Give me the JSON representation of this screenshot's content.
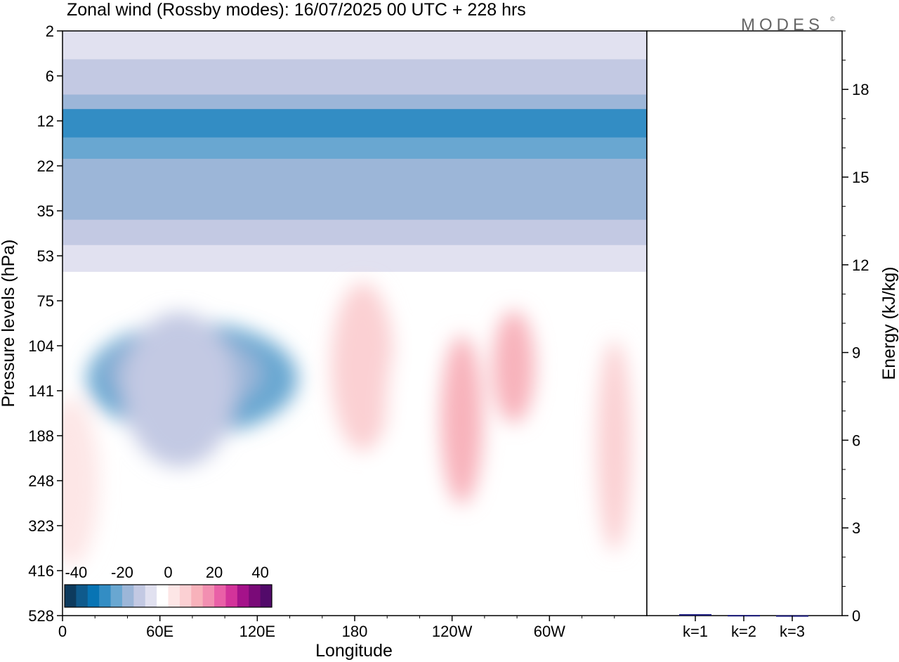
{
  "header": {
    "title": "Zonal wind (Rossby modes):  16/07/2025  00 UTC  + 228 hrs",
    "logo_text": "MODES",
    "logo_mark": "©"
  },
  "chart_data": [
    {
      "type": "heatmap",
      "title": "Zonal wind (Rossby modes):  16/07/2025  00 UTC  + 228 hrs",
      "xlabel": "Longitude",
      "ylabel": "Pressure levels (hPa)",
      "x_ticks": [
        "0",
        "60E",
        "120E",
        "180",
        "120W",
        "60W"
      ],
      "y_ticks": [
        "2",
        "6",
        "12",
        "22",
        "35",
        "53",
        "75",
        "104",
        "141",
        "188",
        "248",
        "323",
        "416",
        "528"
      ],
      "y_scale": "log",
      "colorbar": {
        "tick_labels": [
          "-40",
          "-20",
          "0",
          "20",
          "40"
        ],
        "colors": [
          "#0d3b5e",
          "#0f5a8c",
          "#0874b4",
          "#338dc4",
          "#69a7d1",
          "#9cb6d8",
          "#c3c9e3",
          "#e1e1f0",
          "#ffffff",
          "#fde6e6",
          "#fbd0d3",
          "#f8b2bb",
          "#f28fb1",
          "#e960a7",
          "#d3339a",
          "#a5128a",
          "#7a0a78",
          "#520a6a"
        ]
      },
      "bands": [
        {
          "p_top": 2,
          "p_bottom": 4,
          "value": -7
        },
        {
          "p_top": 4,
          "p_bottom": 6,
          "value": -11
        },
        {
          "p_top": 6,
          "p_bottom": 8,
          "value": -15
        },
        {
          "p_top": 8,
          "p_bottom": 10,
          "value": -20
        },
        {
          "p_top": 10,
          "p_bottom": 12,
          "value": -26
        },
        {
          "p_top": 12,
          "p_bottom": 15,
          "value": -29
        },
        {
          "p_top": 15,
          "p_bottom": 20,
          "value": -25
        },
        {
          "p_top": 20,
          "p_bottom": 30,
          "value": -20
        },
        {
          "p_top": 30,
          "p_bottom": 38,
          "value": -16
        },
        {
          "p_top": 38,
          "p_bottom": 48,
          "value": -11
        },
        {
          "p_top": 48,
          "p_bottom": 60,
          "value": -7
        },
        {
          "p_top": 60,
          "p_bottom": 528,
          "value": -2
        }
      ],
      "blobs": [
        {
          "lon": 80,
          "p": 130,
          "value": -21
        },
        {
          "lon": 75,
          "p": 125,
          "value": -16
        },
        {
          "lon": 72,
          "p": 140,
          "value": -11
        },
        {
          "lon": 185,
          "p": 120,
          "value": 5
        },
        {
          "lon": 246,
          "p": 170,
          "value": 11
        },
        {
          "lon": 278,
          "p": 120,
          "value": 11
        },
        {
          "lon": 340,
          "p": 200,
          "value": 6
        },
        {
          "lon": 210,
          "p": 200,
          "value": -4
        },
        {
          "lon": 5,
          "p": 250,
          "value": 3
        }
      ]
    },
    {
      "type": "bar",
      "categories": [
        "k=1",
        "k=2",
        "k=3"
      ],
      "values": [
        0.05,
        0.02,
        0.01
      ],
      "ylabel": "Energy (kJ/kg)",
      "y_ticks": [
        "0",
        "3",
        "6",
        "9",
        "12",
        "15",
        "18"
      ],
      "ylim": [
        0,
        20
      ],
      "bar_color": "#1a1a7a"
    }
  ]
}
